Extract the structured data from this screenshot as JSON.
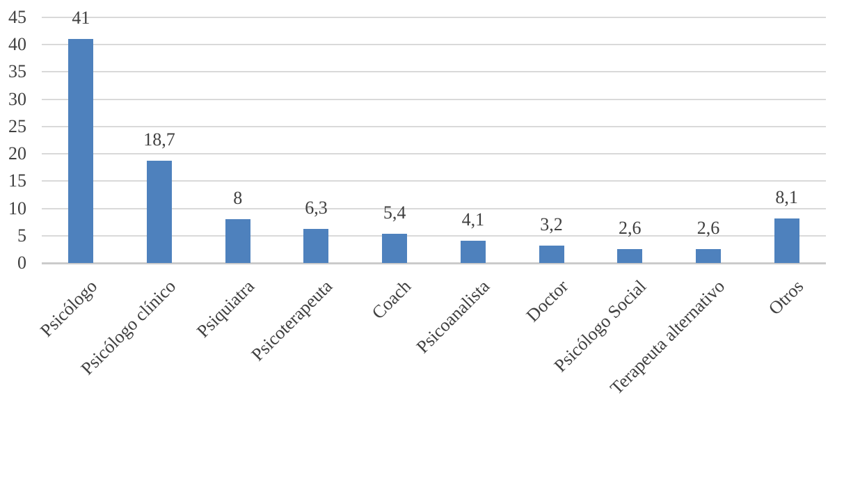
{
  "chart_data": {
    "type": "bar",
    "title": "",
    "xlabel": "",
    "ylabel": "",
    "categories": [
      "Psicólogo",
      "Psicólogo clínico",
      "Psiquiatra",
      "Psicoterapeuta",
      "Coach",
      "Psicoanalista",
      "Doctor",
      "Psicólogo Social",
      "Terapeuta alternativo",
      "Otros"
    ],
    "values": [
      41,
      18.7,
      8,
      6.3,
      5.4,
      4.1,
      3.2,
      2.6,
      2.6,
      8.1
    ],
    "value_labels": [
      "41",
      "18,7",
      "8",
      "6,3",
      "5,4",
      "4,1",
      "3,2",
      "2,6",
      "2,6",
      "8,1"
    ],
    "ylim": [
      0,
      45
    ],
    "ytick_interval": 5,
    "ytick_labels": [
      "0",
      "5",
      "10",
      "15",
      "20",
      "25",
      "30",
      "35",
      "40",
      "45"
    ],
    "grid": "horizontal",
    "legend": "none",
    "colors": {
      "bar": "#4E81BD",
      "gridline": "#D9D9D9",
      "axis_line": "#CBCBCB",
      "text": "#404040",
      "background": "#FFFFFF"
    }
  }
}
